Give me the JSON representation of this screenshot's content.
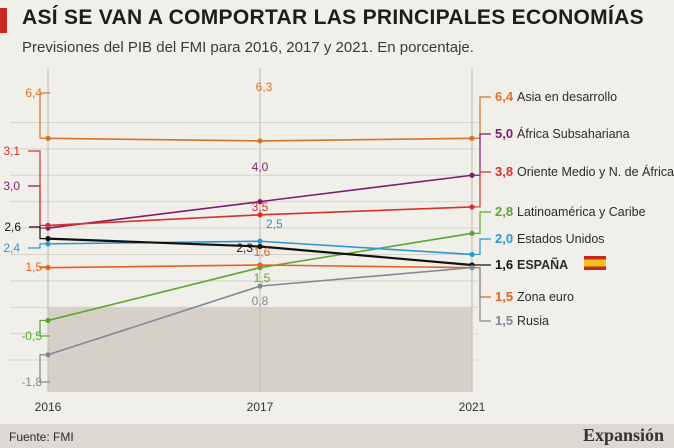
{
  "title": "ASÍ SE VAN A COMPORTAR LAS PRINCIPALES ECONOMÍAS",
  "subtitle": "Previsiones del PIB del FMI para 2016, 2017 y 2021. En porcentaje.",
  "source": "Fuente: FMI",
  "brand": "Expansión",
  "chart_data": {
    "type": "line",
    "title": "ASÍ SE VAN A COMPORTAR LAS PRINCIPALES ECONOMÍAS",
    "subtitle": "Previsiones del PIB del FMI para 2016, 2017 y 2021. En porcentaje.",
    "xlabel": "",
    "ylabel": "",
    "categories": [
      "2016",
      "2017",
      "2021"
    ],
    "ylim": [
      -2.5,
      7
    ],
    "negative_band": [
      -3,
      0
    ],
    "series": [
      {
        "name": "Asia en desarrollo",
        "color": "#d8732a",
        "values": [
          6.4,
          6.3,
          6.4
        ],
        "labels": [
          "6,4",
          "6,3",
          "6,4"
        ]
      },
      {
        "name": "África Subsahariana",
        "color": "#7e1d6e",
        "values": [
          3.0,
          4.0,
          5.0
        ],
        "labels": [
          "3,0",
          "4,0",
          "5,0"
        ]
      },
      {
        "name": "Oriente Medio y N. de África",
        "color": "#d8302a",
        "values": [
          3.1,
          3.5,
          3.8
        ],
        "labels": [
          "3,1",
          "3,5",
          "3,8"
        ]
      },
      {
        "name": "Latinoamérica y Caribe",
        "color": "#5aa631",
        "values": [
          -0.5,
          1.5,
          2.8
        ],
        "labels": [
          "-0,5",
          "1,5",
          "2,8"
        ]
      },
      {
        "name": "Estados Unidos",
        "color": "#2a98d2",
        "values": [
          2.4,
          2.5,
          2.0
        ],
        "labels": [
          "2,4",
          "2,5",
          "2,0"
        ]
      },
      {
        "name": "ESPAÑA",
        "color": "#111111",
        "values": [
          2.6,
          2.3,
          1.6
        ],
        "labels": [
          "2,6",
          "2,3",
          "1,6"
        ]
      },
      {
        "name": "Zona euro",
        "color": "#e8611e",
        "values": [
          1.5,
          1.6,
          1.5
        ],
        "labels": [
          "1,5",
          "1,6",
          "1,5"
        ]
      },
      {
        "name": "Rusia",
        "color": "#7f8a96",
        "values": [
          -1.8,
          0.8,
          1.5
        ],
        "labels": [
          "-1,8",
          "0,8",
          "1,5"
        ]
      }
    ]
  }
}
